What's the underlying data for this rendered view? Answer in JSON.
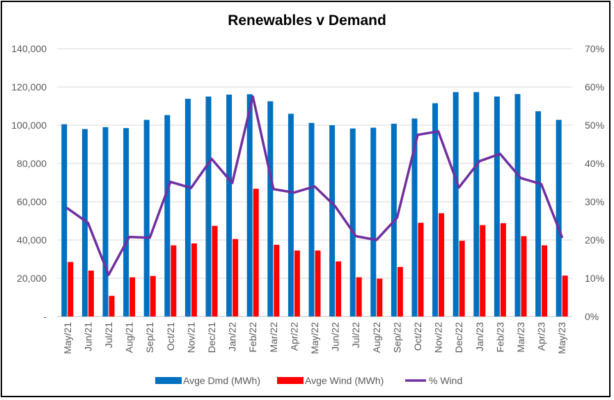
{
  "chart_data": {
    "type": "bar",
    "title": "Renewables v Demand",
    "categories": [
      "May/21",
      "Jun/21",
      "Jul/21",
      "Aug/21",
      "Sep/21",
      "Oct/21",
      "Nov/21",
      "Dec/21",
      "Jan/22",
      "Feb/22",
      "Mar/22",
      "Apr/22",
      "May/22",
      "Jun/22",
      "Jul/22",
      "Aug/22",
      "Sep/22",
      "Oct/22",
      "Nov/22",
      "Dec/22",
      "Jan/23",
      "Feb/23",
      "Mar/23",
      "Apr/23",
      "May/23"
    ],
    "y_left": {
      "ylim": [
        0,
        140000
      ],
      "ticks": [
        0,
        20000,
        40000,
        60000,
        80000,
        100000,
        120000,
        140000
      ],
      "tick_labels": [
        "-",
        "20,000",
        "40,000",
        "60,000",
        "80,000",
        "100,000",
        "120,000",
        "140,000"
      ]
    },
    "y_right": {
      "ylim": [
        0,
        0.7
      ],
      "ticks": [
        0,
        0.1,
        0.2,
        0.3,
        0.4,
        0.5,
        0.6,
        0.7
      ],
      "tick_labels": [
        "0%",
        "10%",
        "20%",
        "30%",
        "40%",
        "50%",
        "60%",
        "70%"
      ]
    },
    "grid": true,
    "legend_position": "bottom",
    "series": [
      {
        "name": "Avge Dmd (MWh)",
        "kind": "bar",
        "axis": "left",
        "color": "#0070C0",
        "values": [
          100500,
          98000,
          99000,
          98500,
          102800,
          105300,
          113800,
          115000,
          116000,
          116200,
          112500,
          106000,
          101200,
          100000,
          98300,
          98700,
          100800,
          103500,
          111500,
          117300,
          117300,
          115000,
          116300,
          107300,
          102800
        ]
      },
      {
        "name": "Avge Wind (MWh)",
        "kind": "bar",
        "axis": "left",
        "color": "#FF0000",
        "values": [
          28500,
          24000,
          10800,
          20500,
          21200,
          37200,
          38200,
          47400,
          40500,
          66800,
          37500,
          34500,
          34500,
          28800,
          20500,
          19800,
          25900,
          49000,
          54000,
          39600,
          47800,
          48800,
          42000,
          37200,
          21400
        ]
      },
      {
        "name": "% Wind",
        "kind": "line",
        "axis": "right",
        "color": "#7030A0",
        "values": [
          0.283,
          0.245,
          0.109,
          0.208,
          0.206,
          0.352,
          0.336,
          0.412,
          0.349,
          0.575,
          0.333,
          0.324,
          0.34,
          0.288,
          0.21,
          0.2,
          0.258,
          0.475,
          0.484,
          0.337,
          0.406,
          0.425,
          0.362,
          0.346,
          0.208
        ]
      }
    ]
  }
}
